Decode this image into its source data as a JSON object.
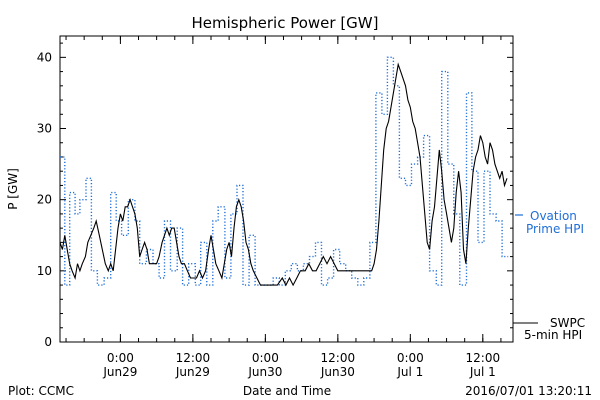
{
  "chart_data": {
    "type": "line",
    "title": "Hemispheric Power [GW]",
    "ylabel": "P [GW]",
    "xlabel": "Date and Time",
    "ylim": [
      0,
      43
    ],
    "xlim_hours": [
      0,
      75
    ],
    "y_ticks": [
      0,
      10,
      20,
      30,
      40
    ],
    "x_ticks": [
      {
        "h": 10,
        "time": "0:00",
        "date": "Jun29"
      },
      {
        "h": 22,
        "time": "12:00",
        "date": "Jun29"
      },
      {
        "h": 34,
        "time": "0:00",
        "date": "Jun30"
      },
      {
        "h": 46,
        "time": "12:00",
        "date": "Jun30"
      },
      {
        "h": 58,
        "time": "0:00",
        "date": "Jul 1"
      },
      {
        "h": 70,
        "time": "12:00",
        "date": "Jul 1"
      }
    ],
    "series": [
      {
        "name": "Ovation Prime HPI",
        "legend_lines": [
          "Ovation",
          "Prime HPI"
        ],
        "style": "dotted-step",
        "color": "#1f6fd8",
        "points": [
          [
            0,
            26
          ],
          [
            0.8,
            26
          ],
          [
            0.8,
            8
          ],
          [
            1.6,
            8
          ],
          [
            1.6,
            21
          ],
          [
            2.5,
            21
          ],
          [
            2.5,
            18
          ],
          [
            3.3,
            18
          ],
          [
            3.3,
            20
          ],
          [
            4.3,
            20
          ],
          [
            4.3,
            23
          ],
          [
            5.2,
            23
          ],
          [
            5.2,
            10
          ],
          [
            6.2,
            10
          ],
          [
            6.2,
            8
          ],
          [
            7.3,
            8
          ],
          [
            7.3,
            9
          ],
          [
            8.4,
            9
          ],
          [
            8.4,
            21
          ],
          [
            9.3,
            21
          ],
          [
            9.3,
            17
          ],
          [
            10.2,
            17
          ],
          [
            10.2,
            15
          ],
          [
            11.3,
            15
          ],
          [
            11.3,
            20
          ],
          [
            12.4,
            20
          ],
          [
            12.4,
            17
          ],
          [
            13.2,
            17
          ],
          [
            13.2,
            11
          ],
          [
            14.3,
            11
          ],
          [
            14.3,
            13
          ],
          [
            15.4,
            13
          ],
          [
            15.4,
            11
          ],
          [
            16.4,
            11
          ],
          [
            16.4,
            9
          ],
          [
            17.3,
            9
          ],
          [
            17.3,
            17
          ],
          [
            18.3,
            17
          ],
          [
            18.3,
            10
          ],
          [
            19.4,
            10
          ],
          [
            19.4,
            16
          ],
          [
            20.3,
            16
          ],
          [
            20.3,
            8
          ],
          [
            21.3,
            8
          ],
          [
            21.3,
            11
          ],
          [
            22.4,
            11
          ],
          [
            22.4,
            8
          ],
          [
            23.3,
            8
          ],
          [
            23.3,
            14
          ],
          [
            24.3,
            14
          ],
          [
            24.3,
            8
          ],
          [
            25.3,
            8
          ],
          [
            25.3,
            17
          ],
          [
            26.2,
            17
          ],
          [
            26.2,
            19
          ],
          [
            27.3,
            19
          ],
          [
            27.3,
            9
          ],
          [
            28.3,
            9
          ],
          [
            28.3,
            18
          ],
          [
            29.3,
            18
          ],
          [
            29.3,
            22
          ],
          [
            30.3,
            22
          ],
          [
            30.3,
            8
          ],
          [
            31.3,
            8
          ],
          [
            31.3,
            15
          ],
          [
            32.3,
            15
          ],
          [
            32.3,
            8
          ],
          [
            35.3,
            8
          ],
          [
            35.3,
            9
          ],
          [
            36.3,
            9
          ],
          [
            36.3,
            8
          ],
          [
            37.3,
            8
          ],
          [
            37.3,
            10
          ],
          [
            38.3,
            10
          ],
          [
            38.3,
            11
          ],
          [
            39.3,
            11
          ],
          [
            39.3,
            10
          ],
          [
            40.3,
            10
          ],
          [
            40.3,
            11
          ],
          [
            41.3,
            11
          ],
          [
            41.3,
            12
          ],
          [
            42.3,
            12
          ],
          [
            42.3,
            14
          ],
          [
            43.3,
            14
          ],
          [
            43.3,
            8
          ],
          [
            44.3,
            8
          ],
          [
            44.3,
            9
          ],
          [
            45.3,
            9
          ],
          [
            45.3,
            13
          ],
          [
            46.3,
            13
          ],
          [
            46.3,
            11
          ],
          [
            47.3,
            11
          ],
          [
            47.3,
            10
          ],
          [
            48.3,
            10
          ],
          [
            48.3,
            9
          ],
          [
            49.3,
            9
          ],
          [
            49.3,
            8
          ],
          [
            50.3,
            8
          ],
          [
            50.3,
            9
          ],
          [
            51.3,
            9
          ],
          [
            51.3,
            14
          ],
          [
            52.3,
            14
          ],
          [
            52.3,
            35
          ],
          [
            53.3,
            35
          ],
          [
            53.3,
            32
          ],
          [
            54.2,
            32
          ],
          [
            54.2,
            40
          ],
          [
            55.2,
            40
          ],
          [
            55.2,
            36
          ],
          [
            56.2,
            36
          ],
          [
            56.2,
            23
          ],
          [
            57.2,
            23
          ],
          [
            57.2,
            22
          ],
          [
            58.2,
            22
          ],
          [
            58.2,
            25
          ],
          [
            59.2,
            25
          ],
          [
            59.2,
            26
          ],
          [
            60.2,
            26
          ],
          [
            60.2,
            29
          ],
          [
            61.2,
            29
          ],
          [
            61.2,
            10
          ],
          [
            62.3,
            10
          ],
          [
            62.3,
            8
          ],
          [
            63.2,
            8
          ],
          [
            63.2,
            38
          ],
          [
            64.2,
            38
          ],
          [
            64.2,
            25
          ],
          [
            65.2,
            25
          ],
          [
            65.2,
            18
          ],
          [
            66.2,
            18
          ],
          [
            66.2,
            8
          ],
          [
            67.3,
            8
          ],
          [
            67.3,
            35
          ],
          [
            68.2,
            35
          ],
          [
            68.2,
            24
          ],
          [
            69.2,
            24
          ],
          [
            69.2,
            14
          ],
          [
            70.2,
            14
          ],
          [
            70.2,
            24
          ],
          [
            71.2,
            24
          ],
          [
            71.2,
            18
          ],
          [
            72.2,
            18
          ],
          [
            72.2,
            17
          ],
          [
            73.2,
            17
          ],
          [
            73.2,
            12
          ],
          [
            74.2,
            12
          ]
        ]
      },
      {
        "name": "SWPC 5-min HPI",
        "legend_lines": [
          "SWPC",
          "5-min HPI"
        ],
        "style": "solid",
        "color": "#000000",
        "points": [
          [
            0,
            14
          ],
          [
            0.4,
            13
          ],
          [
            0.8,
            15
          ],
          [
            1.2,
            13
          ],
          [
            1.6,
            11
          ],
          [
            2.0,
            10
          ],
          [
            2.5,
            9
          ],
          [
            2.9,
            11
          ],
          [
            3.3,
            10
          ],
          [
            3.7,
            11
          ],
          [
            4.2,
            12
          ],
          [
            4.6,
            14
          ],
          [
            5.1,
            15
          ],
          [
            5.6,
            16
          ],
          [
            6.0,
            17
          ],
          [
            6.5,
            15
          ],
          [
            7.0,
            13
          ],
          [
            7.5,
            11
          ],
          [
            8.0,
            10
          ],
          [
            8.4,
            11
          ],
          [
            8.8,
            10
          ],
          [
            9.2,
            13
          ],
          [
            9.6,
            16
          ],
          [
            10.0,
            18
          ],
          [
            10.4,
            17
          ],
          [
            10.8,
            19
          ],
          [
            11.2,
            19
          ],
          [
            11.6,
            20
          ],
          [
            12.0,
            19
          ],
          [
            12.4,
            18
          ],
          [
            12.8,
            16
          ],
          [
            13.2,
            12
          ],
          [
            13.6,
            13
          ],
          [
            14.0,
            14
          ],
          [
            14.4,
            13
          ],
          [
            14.8,
            11
          ],
          [
            15.4,
            11
          ],
          [
            16.0,
            11
          ],
          [
            16.4,
            12
          ],
          [
            16.9,
            14
          ],
          [
            17.3,
            15
          ],
          [
            17.7,
            16
          ],
          [
            18.1,
            15
          ],
          [
            18.5,
            16
          ],
          [
            18.9,
            16
          ],
          [
            19.3,
            14
          ],
          [
            19.7,
            12
          ],
          [
            20.1,
            11
          ],
          [
            20.6,
            11
          ],
          [
            21.1,
            10
          ],
          [
            21.6,
            9
          ],
          [
            22.1,
            9
          ],
          [
            22.6,
            9
          ],
          [
            23.1,
            10
          ],
          [
            23.6,
            9
          ],
          [
            24.1,
            10
          ],
          [
            24.6,
            13
          ],
          [
            25.0,
            15
          ],
          [
            25.4,
            13
          ],
          [
            25.8,
            11
          ],
          [
            26.3,
            10
          ],
          [
            26.8,
            9
          ],
          [
            27.2,
            11
          ],
          [
            27.6,
            13
          ],
          [
            28.0,
            14
          ],
          [
            28.4,
            12
          ],
          [
            28.8,
            16
          ],
          [
            29.2,
            19
          ],
          [
            29.6,
            20
          ],
          [
            30.0,
            19
          ],
          [
            30.4,
            17
          ],
          [
            30.8,
            14
          ],
          [
            31.2,
            13
          ],
          [
            31.6,
            11
          ],
          [
            32.0,
            10
          ],
          [
            32.6,
            9
          ],
          [
            33.2,
            8
          ],
          [
            34.0,
            8
          ],
          [
            35.0,
            8
          ],
          [
            36.0,
            8
          ],
          [
            36.8,
            9
          ],
          [
            37.4,
            8
          ],
          [
            38.0,
            9
          ],
          [
            38.6,
            8
          ],
          [
            39.2,
            9
          ],
          [
            39.8,
            10
          ],
          [
            40.6,
            10
          ],
          [
            41.2,
            11
          ],
          [
            41.8,
            10
          ],
          [
            42.4,
            10
          ],
          [
            43.0,
            11
          ],
          [
            43.6,
            12
          ],
          [
            44.2,
            11
          ],
          [
            44.8,
            12
          ],
          [
            45.4,
            11
          ],
          [
            46.0,
            10
          ],
          [
            47.0,
            10
          ],
          [
            48.0,
            10
          ],
          [
            49.0,
            10
          ],
          [
            50.0,
            10
          ],
          [
            51.0,
            10
          ],
          [
            51.6,
            10
          ],
          [
            52.0,
            11
          ],
          [
            52.4,
            13
          ],
          [
            52.8,
            17
          ],
          [
            53.2,
            22
          ],
          [
            53.6,
            27
          ],
          [
            54.0,
            30
          ],
          [
            54.4,
            31
          ],
          [
            54.8,
            33
          ],
          [
            55.2,
            35
          ],
          [
            55.6,
            37
          ],
          [
            56.0,
            39
          ],
          [
            56.4,
            38
          ],
          [
            56.8,
            37
          ],
          [
            57.2,
            36
          ],
          [
            57.6,
            34
          ],
          [
            58.0,
            33
          ],
          [
            58.4,
            31
          ],
          [
            58.8,
            30
          ],
          [
            59.2,
            28
          ],
          [
            59.6,
            26
          ],
          [
            60.0,
            22
          ],
          [
            60.4,
            18
          ],
          [
            60.8,
            14
          ],
          [
            61.2,
            13
          ],
          [
            61.6,
            17
          ],
          [
            62.0,
            19
          ],
          [
            62.4,
            23
          ],
          [
            62.8,
            27
          ],
          [
            63.2,
            24
          ],
          [
            63.6,
            20
          ],
          [
            64.0,
            18
          ],
          [
            64.4,
            16
          ],
          [
            64.8,
            14
          ],
          [
            65.2,
            16
          ],
          [
            65.6,
            21
          ],
          [
            66.0,
            24
          ],
          [
            66.4,
            21
          ],
          [
            66.8,
            13
          ],
          [
            67.2,
            11
          ],
          [
            67.6,
            16
          ],
          [
            68.0,
            20
          ],
          [
            68.4,
            24
          ],
          [
            68.8,
            26
          ],
          [
            69.2,
            27
          ],
          [
            69.6,
            29
          ],
          [
            70.0,
            28
          ],
          [
            70.4,
            26
          ],
          [
            70.8,
            25
          ],
          [
            71.2,
            28
          ],
          [
            71.6,
            27
          ],
          [
            72.0,
            25
          ],
          [
            72.4,
            24
          ],
          [
            72.8,
            23
          ],
          [
            73.2,
            24
          ],
          [
            73.6,
            22
          ],
          [
            74.0,
            23
          ]
        ]
      }
    ]
  },
  "footer": {
    "left": "Plot: CCMC",
    "center": "Date and Time",
    "right": "2016/07/01 13:20:11"
  }
}
